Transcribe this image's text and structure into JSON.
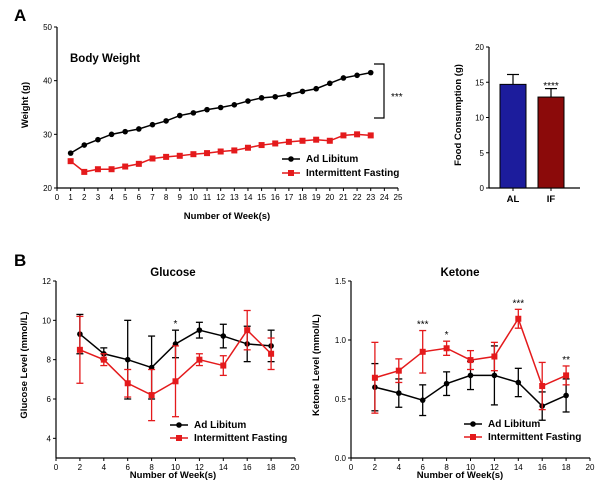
{
  "panels": {
    "a": "A",
    "b": "B"
  },
  "colors": {
    "ad": "#000000",
    "if": "#e41a1c",
    "al_bar": "#1c1c9c",
    "if_bar": "#8b0a0a"
  },
  "chart_data": [
    {
      "type": "line",
      "title": "Body Weight",
      "xlabel": "Number of Week(s)",
      "ylabel": "Weight (g)",
      "xlim": [
        0,
        25
      ],
      "ylim": [
        20,
        50
      ],
      "xticks": [
        "0",
        "1",
        "2",
        "3",
        "4",
        "5",
        "6",
        "7",
        "8",
        "9",
        "10",
        "11",
        "12",
        "13",
        "14",
        "15",
        "16",
        "17",
        "18",
        "19",
        "20",
        "21",
        "22",
        "23",
        "24",
        "25"
      ],
      "yticks": [
        "20",
        "30",
        "40",
        "50"
      ],
      "x": [
        1,
        2,
        3,
        4,
        5,
        6,
        7,
        8,
        9,
        10,
        11,
        12,
        13,
        14,
        15,
        16,
        17,
        18,
        19,
        20,
        21,
        22,
        23
      ],
      "series": [
        {
          "name": "Ad Libitum",
          "marker": "circle",
          "values": [
            26.5,
            28,
            29,
            30,
            30.5,
            31,
            31.8,
            32.5,
            33.5,
            34,
            34.6,
            35,
            35.5,
            36.2,
            36.8,
            37,
            37.4,
            38,
            38.5,
            39.5,
            40.5,
            41,
            41.5
          ]
        },
        {
          "name": "Intermittent Fasting",
          "marker": "square",
          "values": [
            25,
            23,
            23.5,
            23.5,
            24,
            24.5,
            25.5,
            25.8,
            26,
            26.3,
            26.5,
            26.8,
            27,
            27.5,
            28,
            28.3,
            28.6,
            28.8,
            29,
            28.8,
            29.8,
            30,
            29.8
          ]
        }
      ],
      "significance": "***",
      "legend": "bottom-right"
    },
    {
      "type": "bar",
      "ylabel": "Food Consumption (g)",
      "categories": [
        "AL",
        "IF"
      ],
      "values": [
        14.7,
        12.9
      ],
      "errors": [
        1.4,
        1.2
      ],
      "ylim": [
        0,
        20
      ],
      "yticks": [
        "0",
        "5",
        "10",
        "15",
        "20"
      ],
      "significance": "****"
    },
    {
      "type": "line",
      "title": "Glucose",
      "xlabel": "Number of Week(s)",
      "ylabel": "Glucose Level (mmol/L)",
      "xlim": [
        0,
        20
      ],
      "ylim": [
        3,
        12
      ],
      "xticks": [
        "0",
        "2",
        "4",
        "6",
        "8",
        "10",
        "12",
        "14",
        "16",
        "18",
        "20"
      ],
      "yticks": [
        "4",
        "6",
        "8",
        "10",
        "12"
      ],
      "x": [
        2,
        4,
        6,
        8,
        10,
        12,
        14,
        16,
        18
      ],
      "series": [
        {
          "name": "Ad Libitum",
          "marker": "circle",
          "values": [
            9.3,
            8.3,
            8.0,
            7.6,
            8.8,
            9.5,
            9.2,
            8.8,
            8.7
          ],
          "errors": [
            1.0,
            0.3,
            2.0,
            1.6,
            0.7,
            0.4,
            0.6,
            0.9,
            0.8
          ]
        },
        {
          "name": "Intermittent Fasting",
          "marker": "square",
          "values": [
            8.5,
            8.0,
            6.8,
            6.2,
            6.9,
            8.0,
            7.7,
            9.5,
            8.3
          ],
          "errors": [
            1.7,
            0.3,
            0.7,
            1.3,
            1.8,
            0.3,
            0.5,
            1.0,
            0.8
          ]
        }
      ],
      "annotations": [
        {
          "x": 10,
          "text": "*"
        }
      ],
      "legend": "bottom-right"
    },
    {
      "type": "line",
      "title": "Ketone",
      "xlabel": "Number of Week(s)",
      "ylabel": "Ketone Level (mmol/L)",
      "xlim": [
        0,
        20
      ],
      "ylim": [
        0,
        1.5
      ],
      "xticks": [
        "0",
        "2",
        "4",
        "6",
        "8",
        "10",
        "12",
        "14",
        "16",
        "18",
        "20"
      ],
      "yticks": [
        "0.0",
        "0.5",
        "1.0",
        "1.5"
      ],
      "x": [
        2,
        4,
        6,
        8,
        10,
        12,
        14,
        16,
        18
      ],
      "series": [
        {
          "name": "Ad Libitum",
          "marker": "circle",
          "values": [
            0.6,
            0.55,
            0.49,
            0.63,
            0.7,
            0.7,
            0.64,
            0.44,
            0.53
          ],
          "errors": [
            0.2,
            0.12,
            0.13,
            0.1,
            0.12,
            0.25,
            0.12,
            0.12,
            0.14
          ]
        },
        {
          "name": "Intermittent Fasting",
          "marker": "square",
          "values": [
            0.68,
            0.74,
            0.9,
            0.93,
            0.83,
            0.86,
            1.18,
            0.61,
            0.7
          ],
          "errors": [
            0.3,
            0.1,
            0.18,
            0.06,
            0.08,
            0.12,
            0.08,
            0.2,
            0.08
          ]
        }
      ],
      "annotations": [
        {
          "x": 6,
          "text": "***"
        },
        {
          "x": 8,
          "text": "*"
        },
        {
          "x": 14,
          "text": "***"
        },
        {
          "x": 18,
          "text": "**"
        }
      ],
      "legend": "bottom-right"
    }
  ]
}
